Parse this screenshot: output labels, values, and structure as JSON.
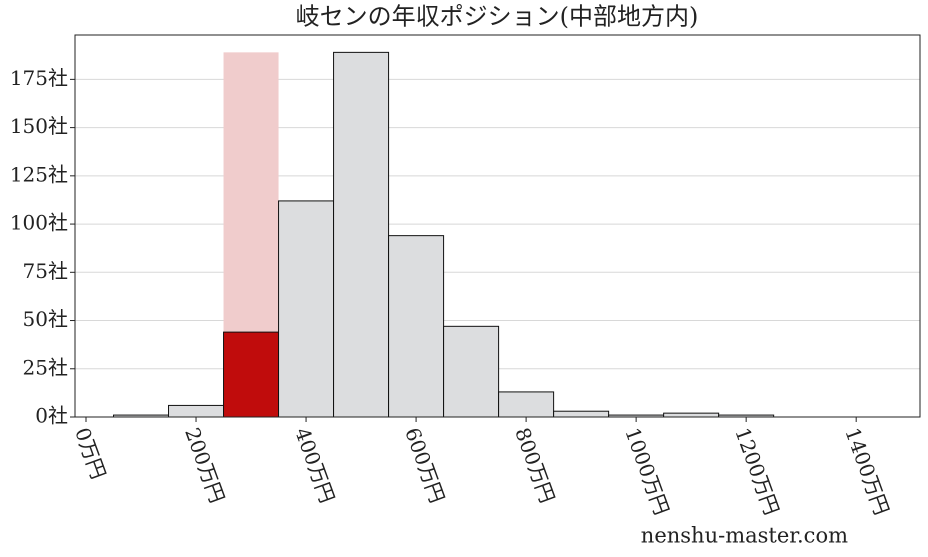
{
  "chart_data": {
    "type": "histogram",
    "title": "岐センの年収ポジション(中部地方内)",
    "watermark": "nenshu-master.com",
    "bins": [
      50,
      150,
      250,
      350,
      450,
      550,
      650,
      750,
      850,
      950,
      1050,
      1150,
      1250
    ],
    "values": [
      1,
      6,
      44,
      112,
      189,
      94,
      47,
      13,
      3,
      1,
      2,
      1
    ],
    "colors": [
      "#dcdddf",
      "#dcdddf",
      "#c00c0c",
      "#dcdddf",
      "#dcdddf",
      "#dcdddf",
      "#dcdddf",
      "#dcdddf",
      "#dcdddf",
      "#dcdddf",
      "#dcdddf",
      "#dcdddf"
    ],
    "highlight_band_color": "#f0cccc",
    "highlight_bin": 2,
    "xlim": [
      -20,
      1516
    ],
    "ylim": [
      0,
      198
    ],
    "xticks": [
      {
        "value": 0,
        "label": "0万円"
      },
      {
        "value": 200,
        "label": "200万円"
      },
      {
        "value": 400,
        "label": "400万円"
      },
      {
        "value": 600,
        "label": "600万円"
      },
      {
        "value": 800,
        "label": "800万円"
      },
      {
        "value": 1000,
        "label": "1000万円"
      },
      {
        "value": 1200,
        "label": "1200万円"
      },
      {
        "value": 1400,
        "label": "1400万円"
      }
    ],
    "yticks": [
      {
        "value": 0,
        "label": "0社"
      },
      {
        "value": 25,
        "label": "25社"
      },
      {
        "value": 50,
        "label": "50社"
      },
      {
        "value": 75,
        "label": "75社"
      },
      {
        "value": 100,
        "label": "100社"
      },
      {
        "value": 125,
        "label": "125社"
      },
      {
        "value": 150,
        "label": "150社"
      },
      {
        "value": 175,
        "label": "175社"
      }
    ],
    "grid": true
  }
}
